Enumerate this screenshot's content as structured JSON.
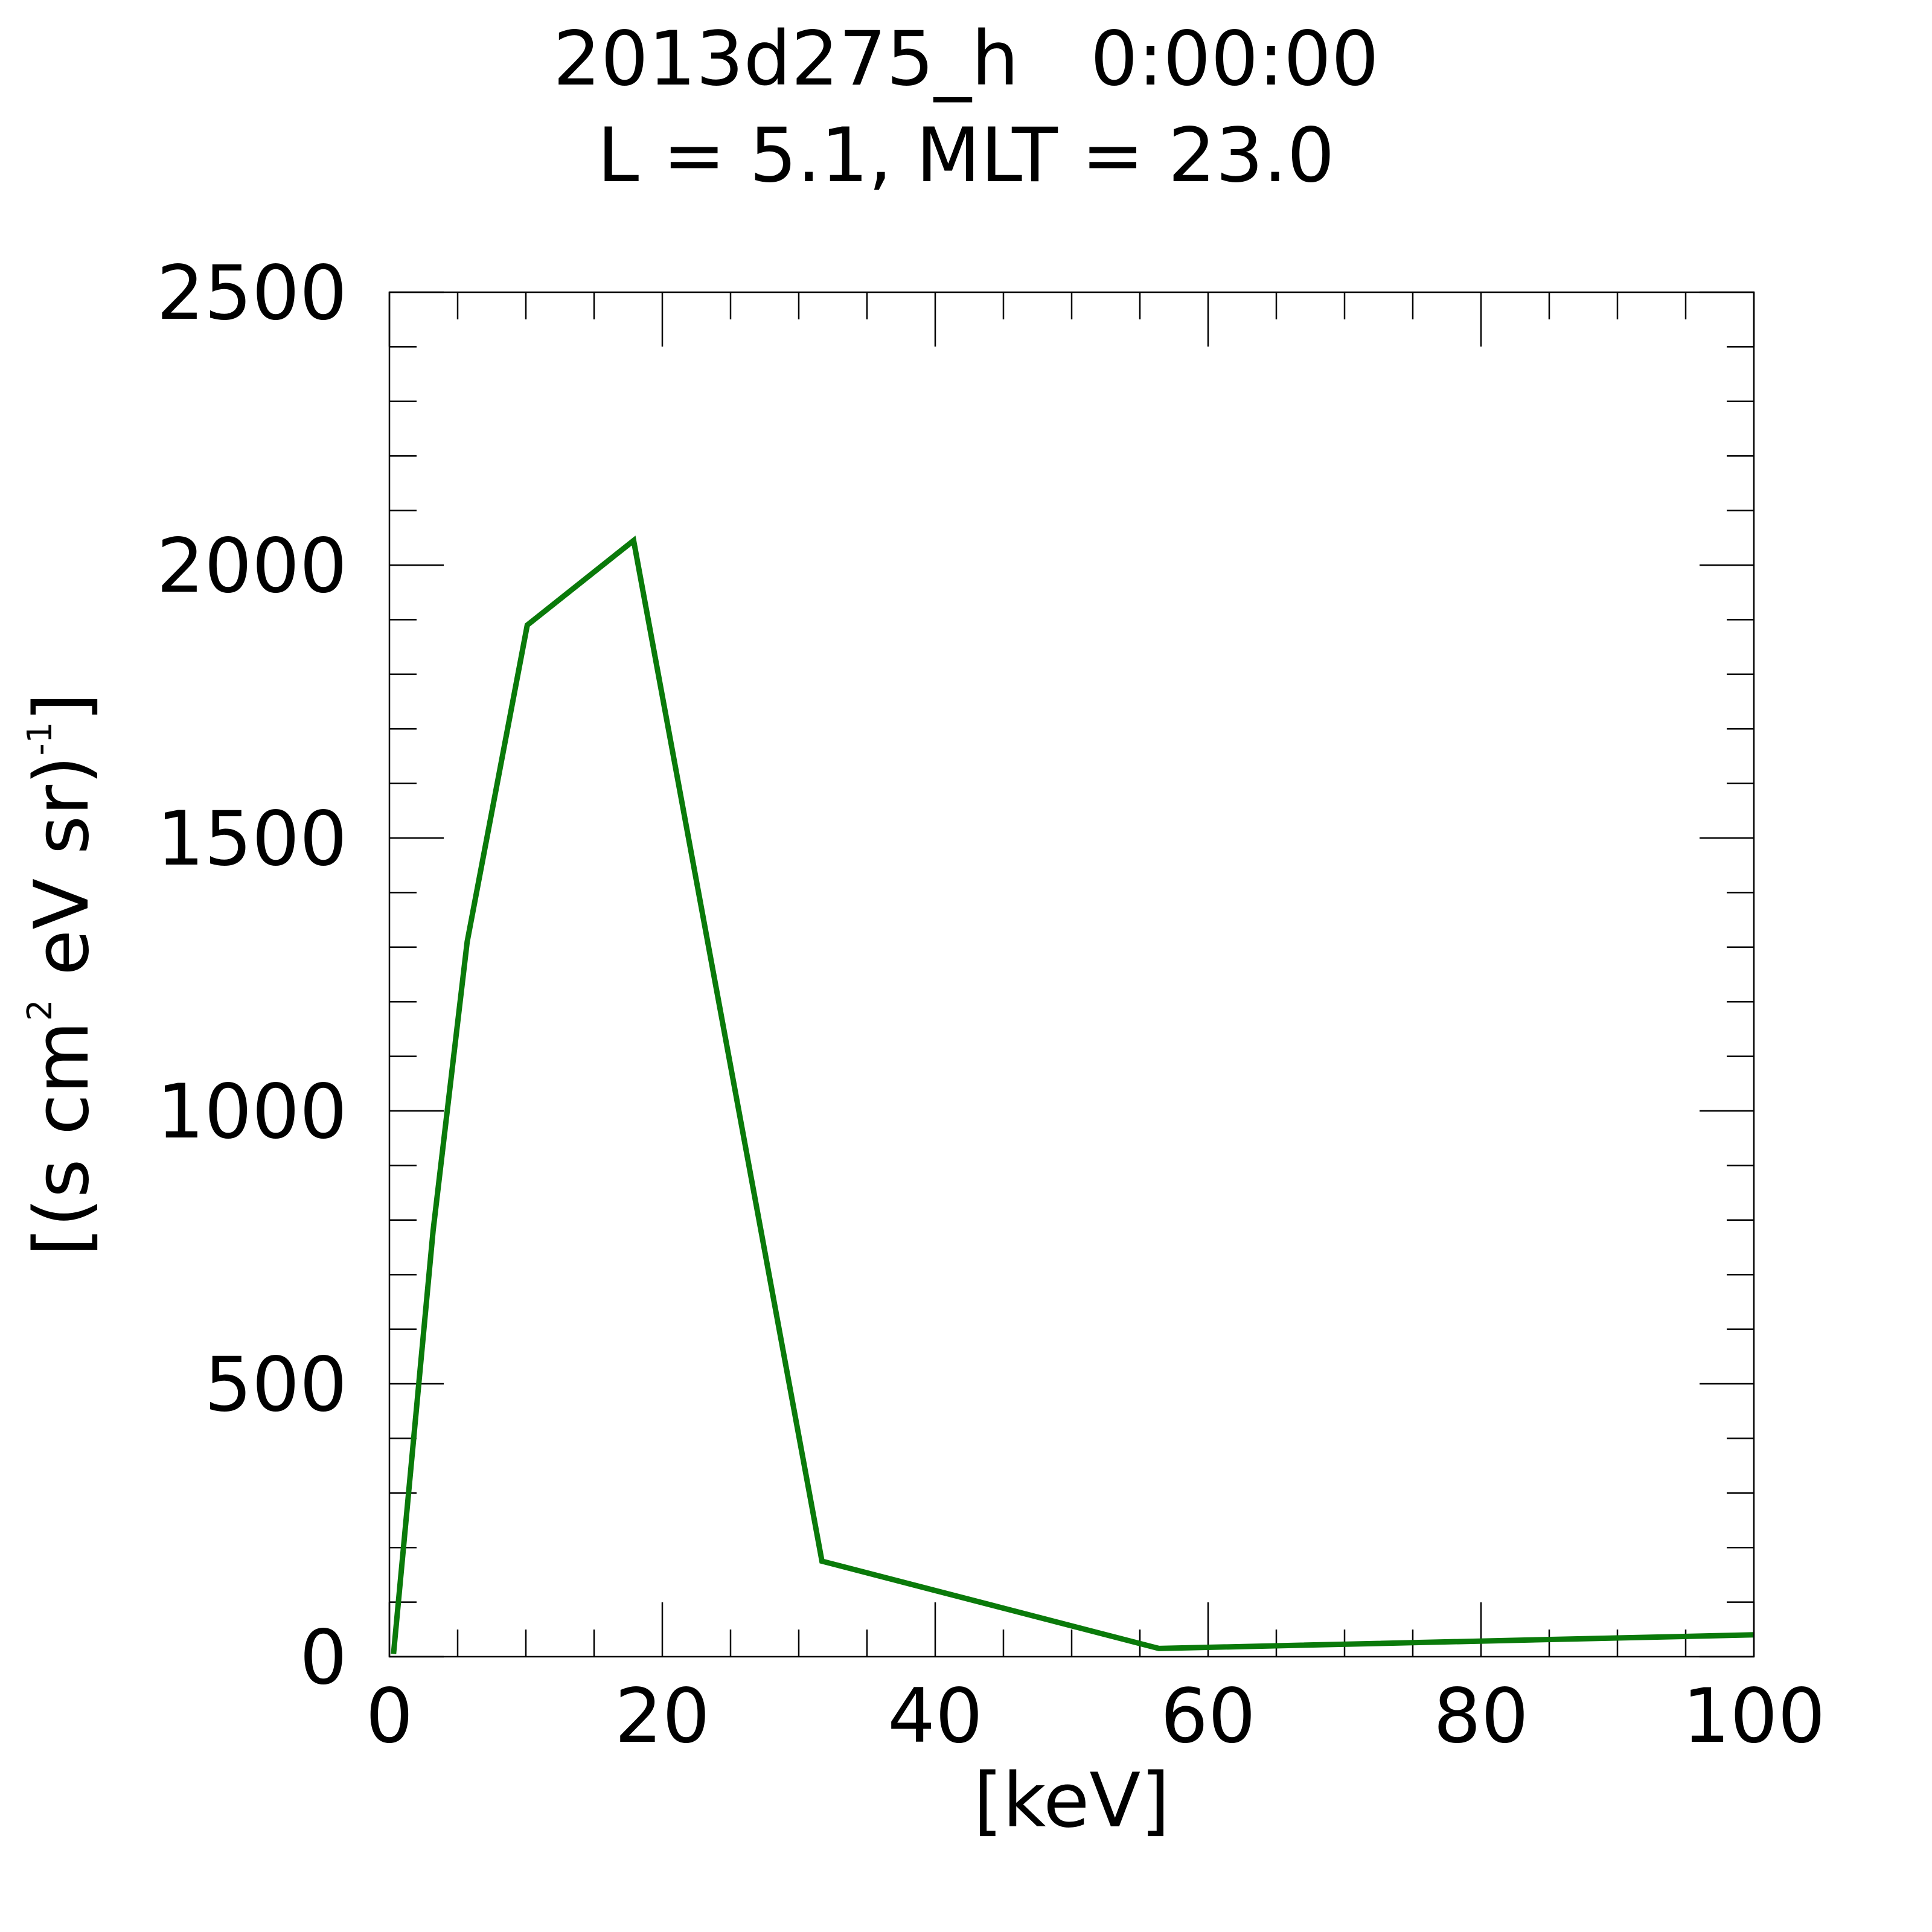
{
  "chart_data": {
    "type": "line",
    "title_line1": "2013d275_h   0:00:00",
    "title_line2": "L = 5.1, MLT = 23.0",
    "xlabel": "[keV]",
    "ylabel": {
      "prefix": "[(s cm",
      "sup1": "2",
      "middle": " eV sr)",
      "sup2": "-1",
      "suffix": "]"
    },
    "xlim": [
      0,
      100
    ],
    "ylim": [
      0,
      2500
    ],
    "x_ticks": [
      0,
      20,
      40,
      60,
      80,
      100
    ],
    "x_tick_labels": [
      "0",
      "20",
      "40",
      "60",
      "80",
      "100"
    ],
    "x_minor_step": 5,
    "y_ticks": [
      0,
      500,
      1000,
      1500,
      2000,
      2500
    ],
    "y_tick_labels": [
      "0",
      "500",
      "1000",
      "1500",
      "2000",
      "2500"
    ],
    "y_minor_step": 100,
    "grid": false,
    "series": [
      {
        "color": "#0a7a0a",
        "x": [
          0.3,
          3.2,
          5.7,
          10.1,
          17.9,
          31.7,
          56.4,
          100
        ],
        "y": [
          5,
          780,
          1310,
          1890,
          2045,
          175,
          15,
          40
        ]
      }
    ]
  }
}
